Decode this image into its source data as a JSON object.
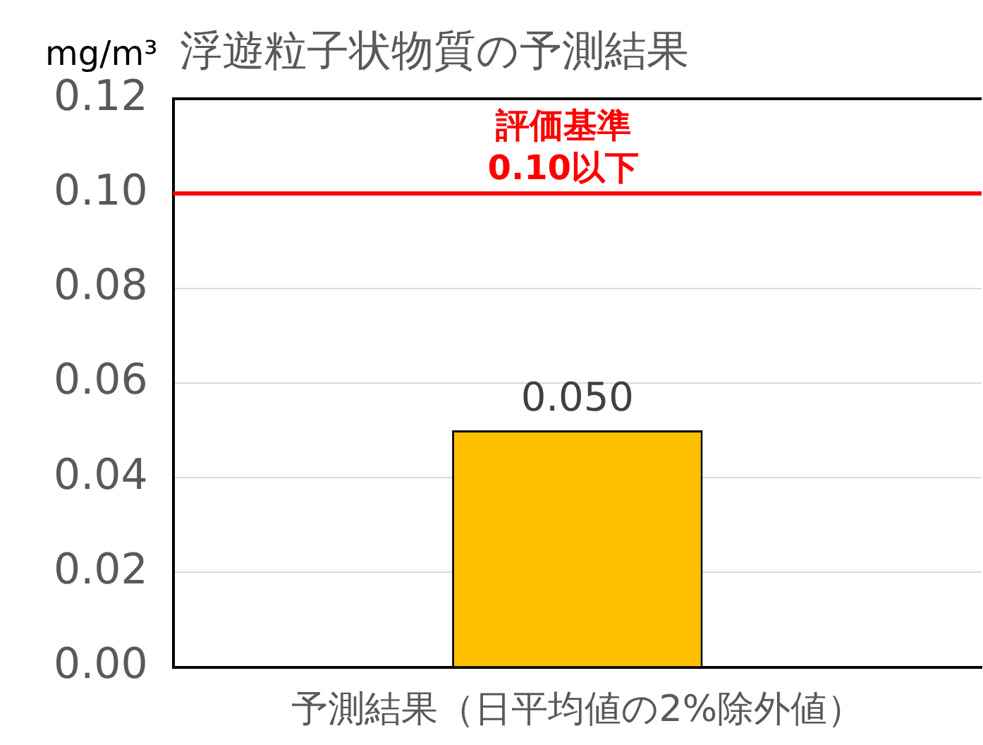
{
  "chart_data": {
    "type": "bar",
    "title": "浮遊粒子状物質の予測結果",
    "ylabel": "mg/m³",
    "categories": [
      "予測結果（日平均値の2%除外値）"
    ],
    "values": [
      0.05
    ],
    "value_labels": [
      "0.050"
    ],
    "color": "#ffc000",
    "ylim": [
      0,
      0.12
    ],
    "yticks": [
      {
        "value": 0,
        "label": "0.00"
      },
      {
        "value": 0.02,
        "label": "0.02"
      },
      {
        "value": 0.04,
        "label": "0.04"
      },
      {
        "value": 0.06,
        "label": "0.06"
      },
      {
        "value": 0.08,
        "label": "0.08"
      },
      {
        "value": 0.1,
        "label": "0.10"
      },
      {
        "value": 0.12,
        "label": "0.12"
      }
    ],
    "grid": "y",
    "ref_lines": [
      {
        "axis": "y",
        "value": 0.1,
        "label": "評価基準\n0.10以下",
        "color": "#ff0000"
      }
    ]
  }
}
